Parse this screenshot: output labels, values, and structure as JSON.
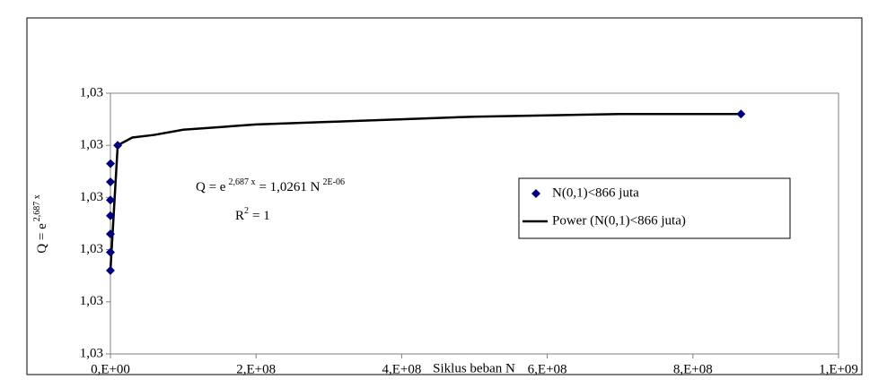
{
  "chart_data": {
    "type": "scatter",
    "x_label": "Siklus beban N",
    "y_label": {
      "base": "Q = e",
      "exp": "2,687 x"
    },
    "equation": {
      "lhs": "Q = e",
      "lhs_exp": "2,687 x",
      "rhs": "= 1,0261 N",
      "rhs_exp": "2E-06"
    },
    "r_squared": {
      "base": "R",
      "exp": "2",
      "rest": "= 1"
    },
    "xlim": [
      0,
      1000000000
    ],
    "xticks": [
      {
        "value": 0,
        "label": "0,E+00"
      },
      {
        "value": 200000000,
        "label": "2,E+08"
      },
      {
        "value": 400000000,
        "label": "4,E+08"
      },
      {
        "value": 600000000,
        "label": "6,E+08"
      },
      {
        "value": 800000000,
        "label": "8,E+08"
      },
      {
        "value": 1000000000,
        "label": "1,E+09"
      }
    ],
    "ylim": [
      1.02605,
      1.02615
    ],
    "yticks": [
      {
        "value": 1.02605,
        "label": "1,03"
      },
      {
        "value": 1.02607,
        "label": "1,03"
      },
      {
        "value": 1.02609,
        "label": "1,03"
      },
      {
        "value": 1.02611,
        "label": "1,03"
      },
      {
        "value": 1.02613,
        "label": "1,03"
      },
      {
        "value": 1.02615,
        "label": "1,03"
      }
    ],
    "series": [
      {
        "name": "N(0,1)<866 juta",
        "color": "#000080",
        "x": [
          1000,
          2000,
          5000,
          10000,
          20000,
          50000,
          100000,
          10000000,
          866000000
        ],
        "values": [
          1.026082,
          1.026089,
          1.026096,
          1.026103,
          1.026109,
          1.026116,
          1.026123,
          1.02613,
          1.026142
        ]
      },
      {
        "name": "Power (N(0,1)<866 juta)",
        "color": "#000000",
        "x": [
          1000,
          10000000,
          30000000,
          60000000,
          100000000,
          150000000,
          200000000,
          300000000,
          400000000,
          500000000,
          700000000,
          866000000
        ],
        "values": [
          1.026082,
          1.02613,
          1.026133,
          1.026134,
          1.026136,
          1.026137,
          1.026138,
          1.026139,
          1.02614,
          1.026141,
          1.026142,
          1.026142
        ]
      }
    ]
  }
}
